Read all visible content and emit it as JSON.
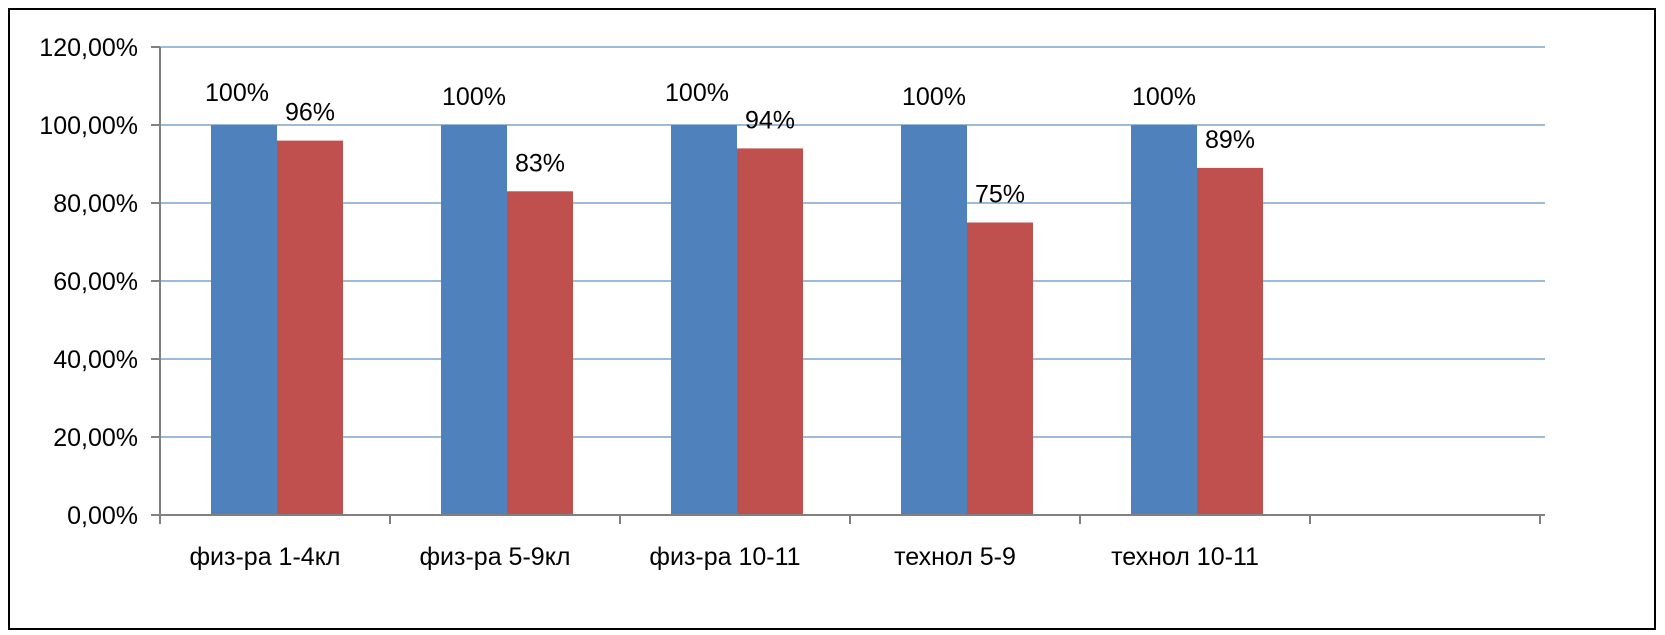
{
  "chart_data": {
    "type": "bar",
    "title": "",
    "xlabel": "",
    "ylabel": "",
    "categories": [
      "физ-ра 1-4кл",
      "физ-ра 5-9кл",
      "физ-ра 10-11",
      "технол 5-9",
      "технол 10-11"
    ],
    "series": [
      {
        "values": [
          100,
          100,
          100,
          100,
          100
        ],
        "labels": [
          "100%",
          "100%",
          "100%",
          "100%",
          "100%"
        ],
        "color": "#4F81BD"
      },
      {
        "values": [
          96,
          83,
          94,
          75,
          89
        ],
        "labels": [
          "96%",
          "83%",
          "94%",
          "75%",
          "89%"
        ],
        "color": "#C0504D"
      }
    ],
    "ylim": [
      0,
      120
    ],
    "yticks": [
      "0,00%",
      "20,00%",
      "40,00%",
      "60,00%",
      "80,00%",
      "100,00%",
      "120,00%"
    ],
    "grid": true,
    "gridColor": "#9BBBD9",
    "legend": "none"
  }
}
